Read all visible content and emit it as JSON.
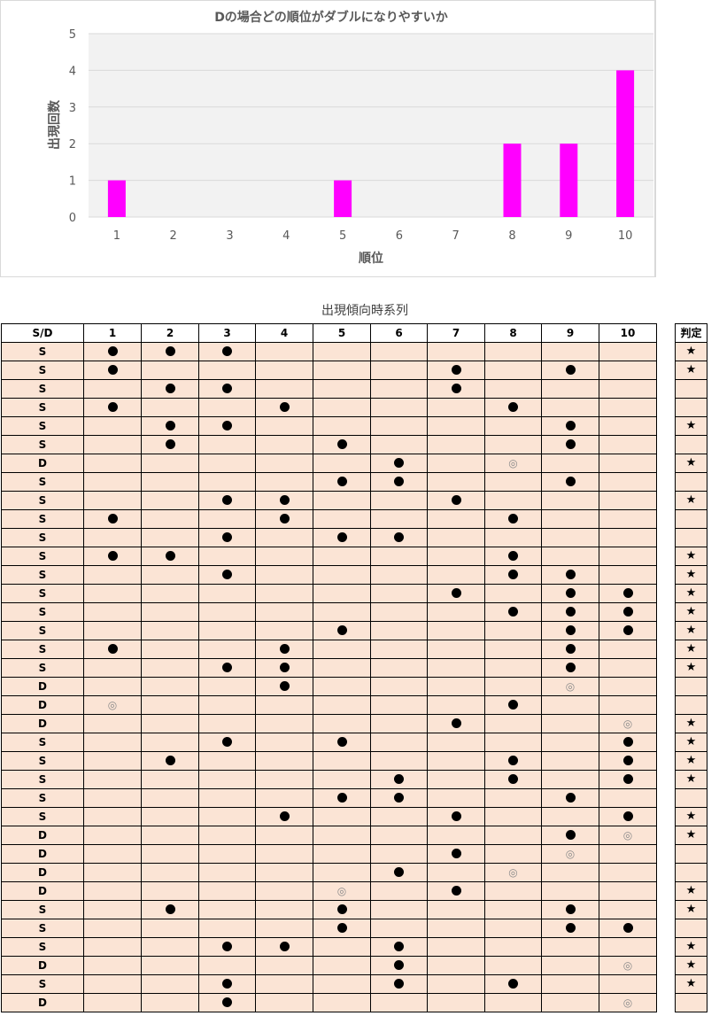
{
  "chart_data": {
    "type": "bar",
    "title": "Dの場合どの順位がダブルになりやすいか",
    "xlabel": "順位",
    "ylabel": "出現回数",
    "categories": [
      "1",
      "2",
      "3",
      "4",
      "5",
      "6",
      "7",
      "8",
      "9",
      "10"
    ],
    "values": [
      1,
      0,
      0,
      0,
      1,
      0,
      0,
      2,
      2,
      4
    ],
    "ylim": [
      0,
      5
    ],
    "yticks": [
      "0",
      "1",
      "2",
      "3",
      "4",
      "5"
    ],
    "grid": true,
    "bar_color": "#ff00ff",
    "plot_bg": "#f2f2f2"
  },
  "table": {
    "title": "出現傾向時系列",
    "header_label": "S/D",
    "columns": [
      "1",
      "2",
      "3",
      "4",
      "5",
      "6",
      "7",
      "8",
      "9",
      "10"
    ],
    "judge_header": "判定",
    "symbols": {
      "dot": "●",
      "double": "◎",
      "star": "★"
    },
    "rows": [
      {
        "sd": "S",
        "marks": [
          "●",
          "●",
          "●",
          "",
          "",
          "",
          "",
          "",
          "",
          ""
        ],
        "judge": "★"
      },
      {
        "sd": "S",
        "marks": [
          "●",
          "",
          "",
          "",
          "",
          "",
          "●",
          "",
          "●",
          ""
        ],
        "judge": "★"
      },
      {
        "sd": "S",
        "marks": [
          "",
          "●",
          "●",
          "",
          "",
          "",
          "●",
          "",
          "",
          ""
        ],
        "judge": ""
      },
      {
        "sd": "S",
        "marks": [
          "●",
          "",
          "",
          "●",
          "",
          "",
          "",
          "●",
          "",
          ""
        ],
        "judge": ""
      },
      {
        "sd": "S",
        "marks": [
          "",
          "●",
          "●",
          "",
          "",
          "",
          "",
          "",
          "●",
          ""
        ],
        "judge": "★"
      },
      {
        "sd": "S",
        "marks": [
          "",
          "●",
          "",
          "",
          "●",
          "",
          "",
          "",
          "●",
          ""
        ],
        "judge": ""
      },
      {
        "sd": "D",
        "marks": [
          "",
          "",
          "",
          "",
          "",
          "●",
          "",
          "◎",
          "",
          ""
        ],
        "judge": "★"
      },
      {
        "sd": "S",
        "marks": [
          "",
          "",
          "",
          "",
          "●",
          "●",
          "",
          "",
          "●",
          ""
        ],
        "judge": ""
      },
      {
        "sd": "S",
        "marks": [
          "",
          "",
          "●",
          "●",
          "",
          "",
          "●",
          "",
          "",
          ""
        ],
        "judge": "★"
      },
      {
        "sd": "S",
        "marks": [
          "●",
          "",
          "",
          "●",
          "",
          "",
          "",
          "●",
          "",
          ""
        ],
        "judge": ""
      },
      {
        "sd": "S",
        "marks": [
          "",
          "",
          "●",
          "",
          "●",
          "●",
          "",
          "",
          "",
          ""
        ],
        "judge": ""
      },
      {
        "sd": "S",
        "marks": [
          "●",
          "●",
          "",
          "",
          "",
          "",
          "",
          "●",
          "",
          ""
        ],
        "judge": "★"
      },
      {
        "sd": "S",
        "marks": [
          "",
          "",
          "●",
          "",
          "",
          "",
          "",
          "●",
          "●",
          ""
        ],
        "judge": "★"
      },
      {
        "sd": "S",
        "marks": [
          "",
          "",
          "",
          "",
          "",
          "",
          "●",
          "",
          "●",
          "●"
        ],
        "judge": "★"
      },
      {
        "sd": "S",
        "marks": [
          "",
          "",
          "",
          "",
          "",
          "",
          "",
          "●",
          "●",
          "●"
        ],
        "judge": "★"
      },
      {
        "sd": "S",
        "marks": [
          "",
          "",
          "",
          "",
          "●",
          "",
          "",
          "",
          "●",
          "●"
        ],
        "judge": "★"
      },
      {
        "sd": "S",
        "marks": [
          "●",
          "",
          "",
          "●",
          "",
          "",
          "",
          "",
          "●",
          ""
        ],
        "judge": "★"
      },
      {
        "sd": "S",
        "marks": [
          "",
          "",
          "●",
          "●",
          "",
          "",
          "",
          "",
          "●",
          ""
        ],
        "judge": "★"
      },
      {
        "sd": "D",
        "marks": [
          "",
          "",
          "",
          "●",
          "",
          "",
          "",
          "",
          "◎",
          ""
        ],
        "judge": ""
      },
      {
        "sd": "D",
        "marks": [
          "◎",
          "",
          "",
          "",
          "",
          "",
          "",
          "●",
          "",
          ""
        ],
        "judge": ""
      },
      {
        "sd": "D",
        "marks": [
          "",
          "",
          "",
          "",
          "",
          "",
          "●",
          "",
          "",
          "◎"
        ],
        "judge": "★"
      },
      {
        "sd": "S",
        "marks": [
          "",
          "",
          "●",
          "",
          "●",
          "",
          "",
          "",
          "",
          "●"
        ],
        "judge": "★"
      },
      {
        "sd": "S",
        "marks": [
          "",
          "●",
          "",
          "",
          "",
          "",
          "",
          "●",
          "",
          "●"
        ],
        "judge": "★"
      },
      {
        "sd": "S",
        "marks": [
          "",
          "",
          "",
          "",
          "",
          "●",
          "",
          "●",
          "",
          "●"
        ],
        "judge": "★"
      },
      {
        "sd": "S",
        "marks": [
          "",
          "",
          "",
          "",
          "●",
          "●",
          "",
          "",
          "●",
          ""
        ],
        "judge": ""
      },
      {
        "sd": "S",
        "marks": [
          "",
          "",
          "",
          "●",
          "",
          "",
          "●",
          "",
          "",
          "●"
        ],
        "judge": "★"
      },
      {
        "sd": "D",
        "marks": [
          "",
          "",
          "",
          "",
          "",
          "",
          "",
          "",
          "●",
          "◎"
        ],
        "judge": "★"
      },
      {
        "sd": "D",
        "marks": [
          "",
          "",
          "",
          "",
          "",
          "",
          "●",
          "",
          "◎",
          ""
        ],
        "judge": ""
      },
      {
        "sd": "D",
        "marks": [
          "",
          "",
          "",
          "",
          "",
          "●",
          "",
          "◎",
          "",
          ""
        ],
        "judge": ""
      },
      {
        "sd": "D",
        "marks": [
          "",
          "",
          "",
          "",
          "◎",
          "",
          "●",
          "",
          "",
          ""
        ],
        "judge": "★"
      },
      {
        "sd": "S",
        "marks": [
          "",
          "●",
          "",
          "",
          "●",
          "",
          "",
          "",
          "●",
          ""
        ],
        "judge": "★"
      },
      {
        "sd": "S",
        "marks": [
          "",
          "",
          "",
          "",
          "●",
          "",
          "",
          "",
          "●",
          "●"
        ],
        "judge": ""
      },
      {
        "sd": "S",
        "marks": [
          "",
          "",
          "●",
          "●",
          "",
          "●",
          "",
          "",
          "",
          ""
        ],
        "judge": "★"
      },
      {
        "sd": "D",
        "marks": [
          "",
          "",
          "",
          "",
          "",
          "●",
          "",
          "",
          "",
          "◎"
        ],
        "judge": "★"
      },
      {
        "sd": "S",
        "marks": [
          "",
          "",
          "●",
          "",
          "",
          "●",
          "",
          "●",
          "",
          ""
        ],
        "judge": "★"
      },
      {
        "sd": "D",
        "marks": [
          "",
          "",
          "●",
          "",
          "",
          "",
          "",
          "",
          "",
          "◎"
        ],
        "judge": ""
      }
    ]
  }
}
